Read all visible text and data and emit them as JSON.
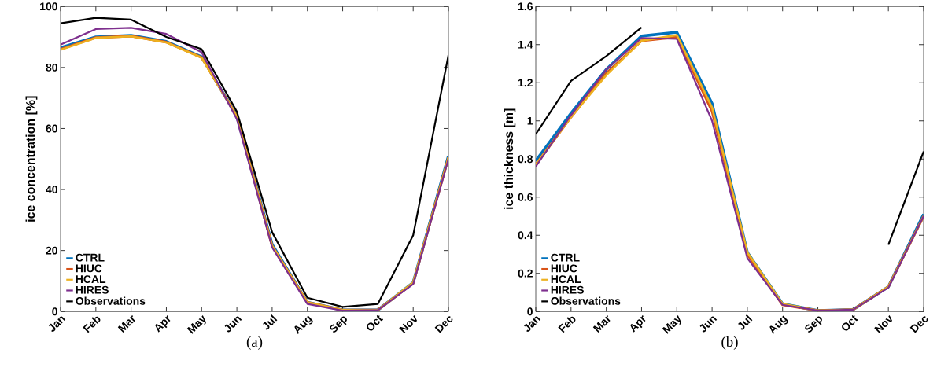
{
  "chart_data": [
    {
      "type": "line",
      "xlabel": "(a)",
      "ylabel": "ice concentration [%]",
      "categories": [
        "Jan",
        "Feb",
        "Mar",
        "Apr",
        "May",
        "Jun",
        "Jul",
        "Aug",
        "Sep",
        "Oct",
        "Nov",
        "Dec"
      ],
      "ylim": [
        0,
        100
      ],
      "yticks": [
        0,
        20,
        40,
        60,
        80,
        100
      ],
      "legend": "bottom left",
      "series": [
        {
          "name": "CTRL",
          "color": "#0072bd",
          "values": [
            86.5,
            90,
            90.5,
            88.5,
            83.5,
            64,
            22,
            3,
            0.5,
            0.5,
            9.5,
            51
          ]
        },
        {
          "name": "HIUC",
          "color": "#d95319",
          "values": [
            86,
            89.8,
            90.3,
            88.3,
            83.3,
            64,
            21.5,
            3,
            0.5,
            0.5,
            9.3,
            50.5
          ]
        },
        {
          "name": "HCAL",
          "color": "#edb120",
          "values": [
            85.8,
            89.7,
            90.2,
            88.2,
            83.2,
            64,
            21.5,
            3,
            0.5,
            0.5,
            9.5,
            50.5
          ]
        },
        {
          "name": "HIRES",
          "color": "#7e2f8e",
          "values": [
            87.5,
            92.6,
            93,
            91,
            85,
            63,
            21,
            2.5,
            0.3,
            0.5,
            9,
            50
          ]
        },
        {
          "name": "Observations",
          "color": "#000000",
          "values": [
            94.5,
            96.3,
            95.7,
            90,
            86,
            65.5,
            26,
            4.5,
            1.5,
            2.5,
            25,
            84
          ]
        }
      ]
    },
    {
      "type": "line",
      "xlabel": "(b)",
      "ylabel": "ice thickness [m]",
      "categories": [
        "Jan",
        "Feb",
        "Mar",
        "Apr",
        "May",
        "Jun",
        "Jul",
        "Aug",
        "Sep",
        "Oct",
        "Nov",
        "Dec"
      ],
      "ylim": [
        0,
        1.6
      ],
      "yticks": [
        0,
        0.2,
        0.4,
        0.6,
        0.8,
        1,
        1.2,
        1.4,
        1.6
      ],
      "legend": "bottom left",
      "series": [
        {
          "name": "CTRL",
          "color": "#0072bd",
          "values": [
            0.79,
            1.04,
            1.27,
            1.445,
            1.465,
            1.09,
            0.31,
            0.04,
            0.005,
            0.01,
            0.13,
            0.51
          ]
        },
        {
          "name": "HIUC",
          "color": "#d95319",
          "values": [
            0.77,
            1.02,
            1.25,
            1.42,
            1.44,
            1.05,
            0.3,
            0.035,
            0.005,
            0.01,
            0.13,
            0.5
          ]
        },
        {
          "name": "HCAL",
          "color": "#edb120",
          "values": [
            0.77,
            1.02,
            1.24,
            1.42,
            1.45,
            1.07,
            0.31,
            0.04,
            0.005,
            0.01,
            0.13,
            0.5
          ]
        },
        {
          "name": "HIRES",
          "color": "#7e2f8e",
          "values": [
            0.76,
            1.03,
            1.27,
            1.435,
            1.43,
            1.0,
            0.28,
            0.035,
            0.005,
            0.01,
            0.125,
            0.5
          ]
        },
        {
          "name": "Observations",
          "color": "#000000",
          "values": [
            0.93,
            1.21,
            1.34,
            1.49,
            null,
            null,
            null,
            null,
            null,
            null,
            0.35,
            0.84
          ]
        }
      ]
    }
  ]
}
